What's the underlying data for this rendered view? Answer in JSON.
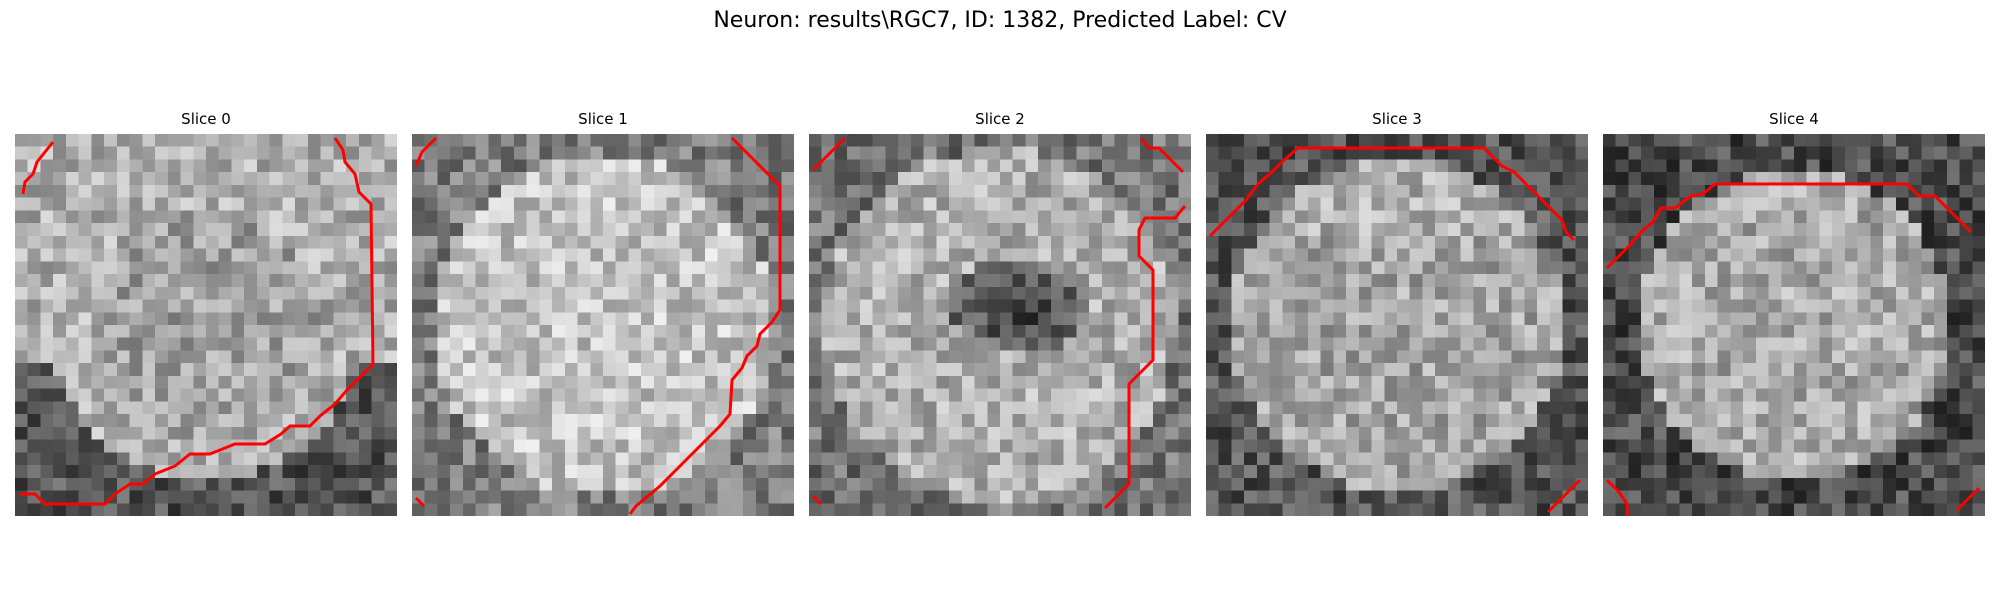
{
  "figure": {
    "title": "Neuron: results\\RGC7, ID: 1382, Predicted Label: CV"
  },
  "slices": [
    {
      "title": "Slice 0"
    },
    {
      "title": "Slice 1"
    },
    {
      "title": "Slice 2"
    },
    {
      "title": "Slice 3"
    },
    {
      "title": "Slice 4"
    }
  ],
  "colors": {
    "contour": "#ff0000",
    "image_map": "grayscale"
  }
}
